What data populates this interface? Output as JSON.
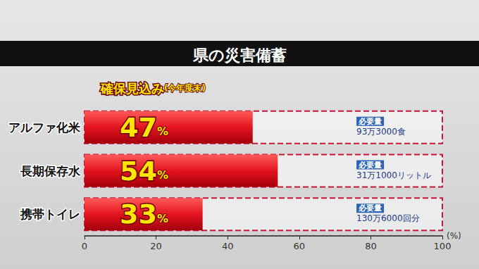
{
  "chart_data": {
    "type": "bar",
    "title": "県の災害備蓄",
    "orientation": "horizontal",
    "annotation": "確保見込み(今年度末)",
    "categories": [
      "アルファ化米",
      "長期保存水",
      "携帯トイレ"
    ],
    "values": [
      47,
      54,
      33
    ],
    "value_labels": [
      "47%",
      "54%",
      "33%"
    ],
    "data_labels": true,
    "color": "#e3141f",
    "xlim": [
      0,
      100
    ],
    "xticks": [
      0,
      20,
      40,
      60,
      80,
      100
    ],
    "xlabel": "(%)",
    "grid": false,
    "required_title": "必要量",
    "required_amounts": [
      "93万3000食",
      "31万1000リットル",
      "130万6000回分"
    ]
  }
}
